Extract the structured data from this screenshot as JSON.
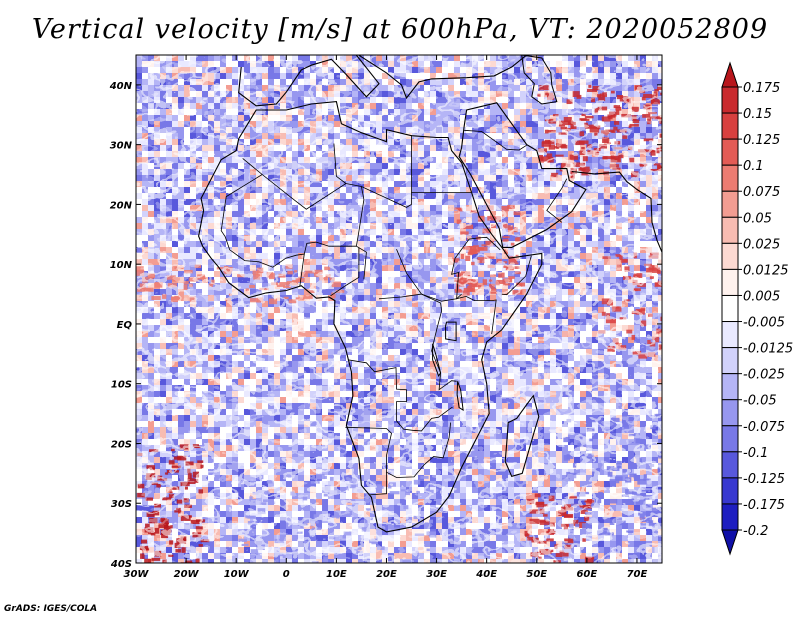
{
  "chart_data": {
    "type": "heatmap",
    "title": "Vertical velocity [m/s] at 600hPa, VT: 2020052809",
    "variable": "Vertical velocity",
    "units": "m/s",
    "level": "600hPa",
    "valid_time": "2020052809",
    "xlim": [
      -30,
      75
    ],
    "ylim": [
      -40,
      45
    ],
    "x_ticks": [
      -30,
      -20,
      -10,
      0,
      10,
      20,
      30,
      40,
      50,
      60,
      70
    ],
    "x_tick_labels": [
      "30W",
      "20W",
      "10W",
      "0",
      "10E",
      "20E",
      "30E",
      "40E",
      "50E",
      "60E",
      "70E"
    ],
    "y_ticks": [
      40,
      30,
      20,
      10,
      0,
      -10,
      -20,
      -30,
      -40
    ],
    "y_tick_labels": [
      "40N",
      "30N",
      "20N",
      "10N",
      "EQ",
      "10S",
      "20S",
      "30S",
      "40S"
    ],
    "colorbar": {
      "levels": [
        "0.175",
        "0.15",
        "0.125",
        "0.1",
        "0.075",
        "0.05",
        "0.025",
        "0.0125",
        "0.005",
        "-0.005",
        "-0.0125",
        "-0.025",
        "-0.05",
        "-0.075",
        "-0.1",
        "-0.125",
        "-0.175",
        "-0.2"
      ],
      "colors": [
        "#b8161c",
        "#c92a2e",
        "#d8403f",
        "#e35b55",
        "#ec7c72",
        "#f39d92",
        "#f8bcb2",
        "#fcd9d2",
        "#fff2ee",
        "#ffffff",
        "#e9e9ff",
        "#d2d2fb",
        "#b5b5f6",
        "#9797ef",
        "#7878e7",
        "#5858dc",
        "#3838cf",
        "#1e1ec0",
        "#1010a8"
      ]
    }
  },
  "footer": {
    "credit": "GrADS: IGES/COLA"
  }
}
